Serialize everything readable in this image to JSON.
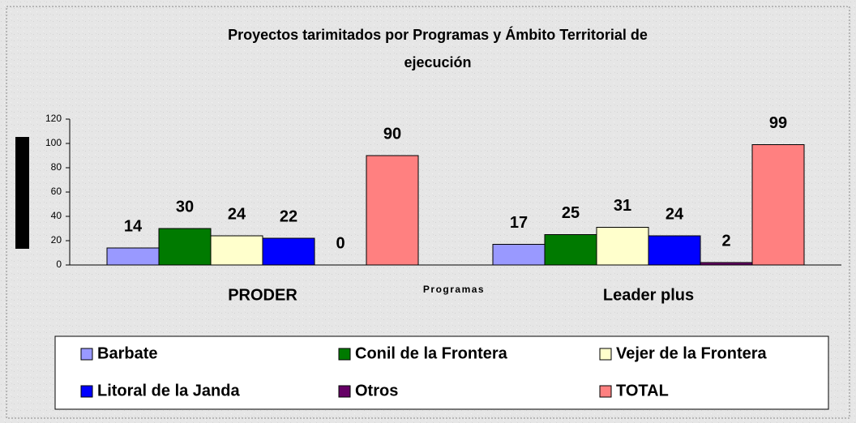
{
  "chart_data": {
    "type": "bar",
    "title": [
      "Proyectos tarimitados por Programas y  Ámbito Territorial de",
      "ejecución"
    ],
    "x_label": "Programas",
    "categories": [
      "PRODER",
      "Leader plus"
    ],
    "series": [
      {
        "name": "Barbate",
        "color": "#9999ff",
        "values": [
          14,
          17
        ]
      },
      {
        "name": "Conil de la Frontera",
        "color": "#007a00",
        "values": [
          30,
          25
        ]
      },
      {
        "name": "Vejer de la Frontera",
        "color": "#ffffcc",
        "values": [
          24,
          31
        ]
      },
      {
        "name": "Litoral de la Janda",
        "color": "#0000ff",
        "values": [
          22,
          24
        ]
      },
      {
        "name": "Otros",
        "color": "#660066",
        "values": [
          0,
          2
        ]
      },
      {
        "name": "TOTAL",
        "color": "#ff8080",
        "values": [
          90,
          99
        ]
      }
    ],
    "ylim": [
      0,
      120
    ],
    "yticks": [
      0,
      20,
      40,
      60,
      80,
      100,
      120
    ]
  }
}
